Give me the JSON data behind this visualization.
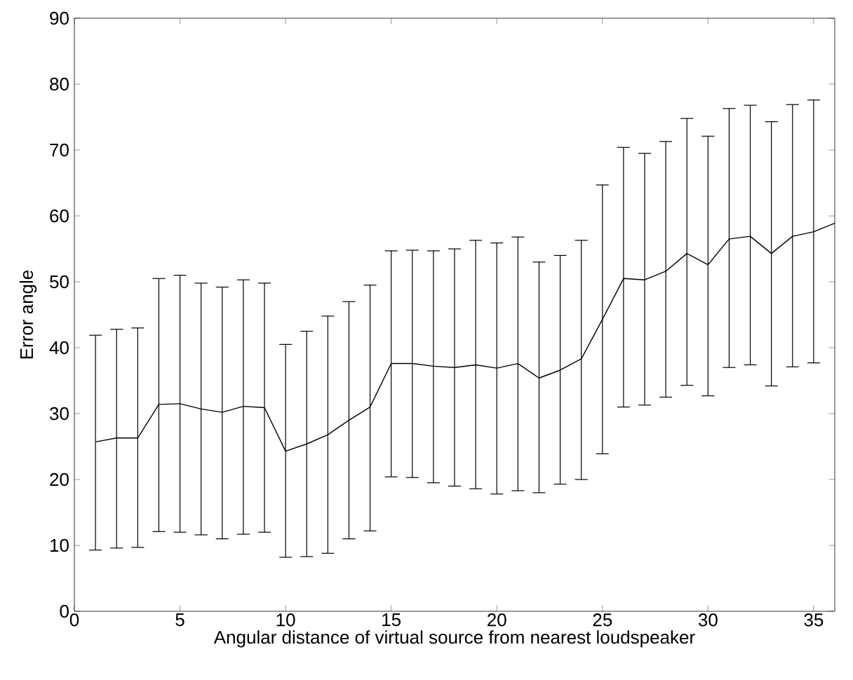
{
  "chart_data": {
    "type": "line",
    "xlabel": "Angular distance of virtual source from nearest loudspeaker",
    "ylabel": "Error angle",
    "x": [
      1,
      2,
      3,
      4,
      5,
      6,
      7,
      8,
      9,
      10,
      11,
      12,
      13,
      14,
      15,
      16,
      17,
      18,
      19,
      20,
      21,
      22,
      23,
      24,
      25,
      26,
      27,
      28,
      29,
      30,
      31,
      32,
      33,
      34,
      35,
      36
    ],
    "series": [
      {
        "color": "#000000",
        "values": [
          25.7,
          26.3,
          26.3,
          31.4,
          31.5,
          30.7,
          30.2,
          31.1,
          30.9,
          24.3,
          25.4,
          26.8,
          29,
          31,
          37.6,
          37.6,
          37.2,
          37,
          37.4,
          36.9,
          37.6,
          35.4,
          36.6,
          38.3,
          44.3,
          50.5,
          50.3,
          51.6,
          54.3,
          52.6,
          56.5,
          56.9,
          54.3,
          56.9,
          57.6,
          58.9
        ],
        "errors": [
          [
            9.3,
            41.9
          ],
          [
            9.6,
            42.8
          ],
          [
            9.7,
            43
          ],
          [
            12.1,
            50.5
          ],
          [
            12,
            51
          ],
          [
            11.6,
            49.8
          ],
          [
            11,
            49.2
          ],
          [
            11.7,
            50.3
          ],
          [
            12,
            49.8
          ],
          [
            8.2,
            40.5
          ],
          [
            8.3,
            42.5
          ],
          [
            8.8,
            44.8
          ],
          [
            11,
            47
          ],
          [
            12.2,
            49.5
          ],
          [
            20.4,
            54.7
          ],
          [
            20.3,
            54.8
          ],
          [
            19.5,
            54.7
          ],
          [
            19,
            55
          ],
          [
            18.6,
            56.3
          ],
          [
            17.8,
            55.9
          ],
          [
            18.3,
            56.8
          ],
          [
            18,
            53
          ],
          [
            19.3,
            54
          ],
          [
            20,
            56.3
          ],
          [
            23.9,
            64.7
          ],
          [
            31,
            70.4
          ],
          [
            31.3,
            69.5
          ],
          [
            32.5,
            71.3
          ],
          [
            34.3,
            74.8
          ],
          [
            32.7,
            72.1
          ],
          [
            37,
            76.3
          ],
          [
            37.4,
            76.8
          ],
          [
            34.2,
            74.3
          ],
          [
            37.1,
            76.9
          ],
          [
            37.7,
            77.6
          ],
          null
        ]
      }
    ],
    "xlim": [
      0,
      36
    ],
    "ylim": [
      0,
      90
    ],
    "xticks": [
      0,
      5,
      10,
      15,
      20,
      25,
      30,
      35
    ],
    "yticks": [
      0,
      10,
      20,
      30,
      40,
      50,
      60,
      70,
      80,
      90
    ],
    "grid": false,
    "marker": "none",
    "line_style": "solid"
  }
}
